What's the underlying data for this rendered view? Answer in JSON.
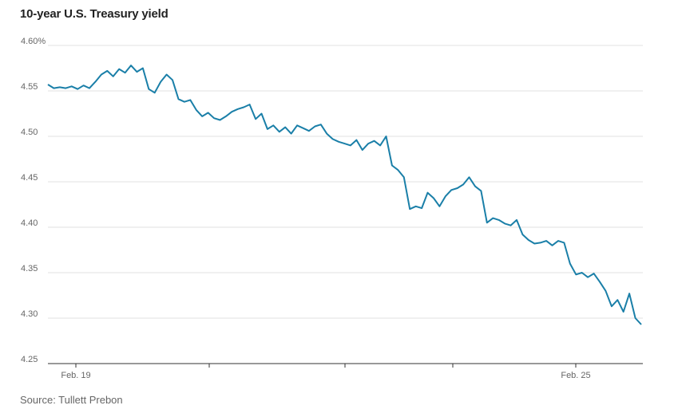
{
  "title": "10-year U.S. Treasury yield",
  "source": "Source: Tullett Prebon",
  "chart_data": {
    "type": "line",
    "title": "10-year U.S. Treasury yield",
    "xlabel": "",
    "ylabel": "",
    "ylim": [
      4.25,
      4.6
    ],
    "y_ticks": [
      "4.60%",
      "4.55",
      "4.50",
      "4.45",
      "4.40",
      "4.35",
      "4.30",
      "4.25"
    ],
    "x_tick_labels": [
      "Feb. 19",
      "Feb. 25"
    ],
    "grid": true,
    "color": "#1a7fa8",
    "series": [
      {
        "values": [
          4.557,
          4.553,
          4.554,
          4.553,
          4.555,
          4.552,
          4.556,
          4.553,
          4.56,
          4.568,
          4.572,
          4.566,
          4.574,
          4.57,
          4.578,
          4.571,
          4.575,
          4.552,
          4.548,
          4.56,
          4.568,
          4.562,
          4.541,
          4.538,
          4.54,
          4.529,
          4.522,
          4.526,
          4.52,
          4.518,
          4.522,
          4.527,
          4.53,
          4.532,
          4.535,
          4.519,
          4.525,
          4.508,
          4.512,
          4.505,
          4.51,
          4.503,
          4.512,
          4.509,
          4.506,
          4.511,
          4.513,
          4.503,
          4.497,
          4.494,
          4.492,
          4.49,
          4.496,
          4.485,
          4.492,
          4.495,
          4.49,
          4.5,
          4.468,
          4.463,
          4.455,
          4.42,
          4.423,
          4.421,
          4.438,
          4.432,
          4.423,
          4.434,
          4.441,
          4.443,
          4.447,
          4.455,
          4.445,
          4.44,
          4.405,
          4.41,
          4.408,
          4.404,
          4.402,
          4.408,
          4.392,
          4.386,
          4.382,
          4.383,
          4.385,
          4.38,
          4.385,
          4.383,
          4.36,
          4.348,
          4.35,
          4.345,
          4.349,
          4.34,
          4.33,
          4.313,
          4.32,
          4.307,
          4.327,
          4.3,
          4.293
        ]
      }
    ]
  }
}
